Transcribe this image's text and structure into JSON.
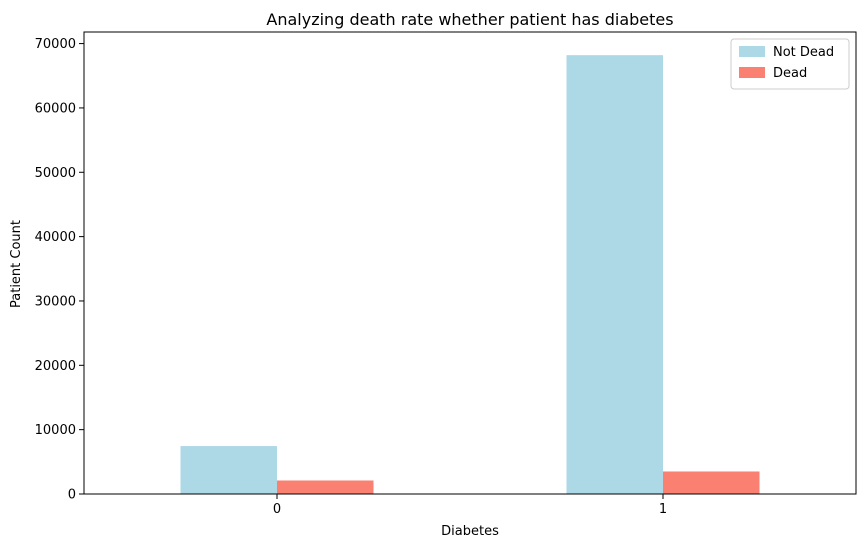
{
  "chart_data": {
    "type": "bar",
    "title": "Analyzing death rate whether patient has diabetes",
    "xlabel": "Diabetes",
    "ylabel": "Patient Count",
    "categories": [
      "0",
      "1"
    ],
    "series": [
      {
        "name": "Not Dead",
        "color": "#add8e6",
        "values": [
          7450,
          68200
        ]
      },
      {
        "name": "Dead",
        "color": "#fa8072",
        "values": [
          2100,
          3500
        ]
      }
    ],
    "ylim": [
      0,
      71800
    ],
    "yticks": [
      0,
      10000,
      20000,
      30000,
      40000,
      50000,
      60000,
      70000
    ],
    "ytick_labels": [
      "0",
      "10000",
      "20000",
      "30000",
      "40000",
      "50000",
      "60000",
      "70000"
    ],
    "grid": false,
    "legend_position": "top-right"
  }
}
